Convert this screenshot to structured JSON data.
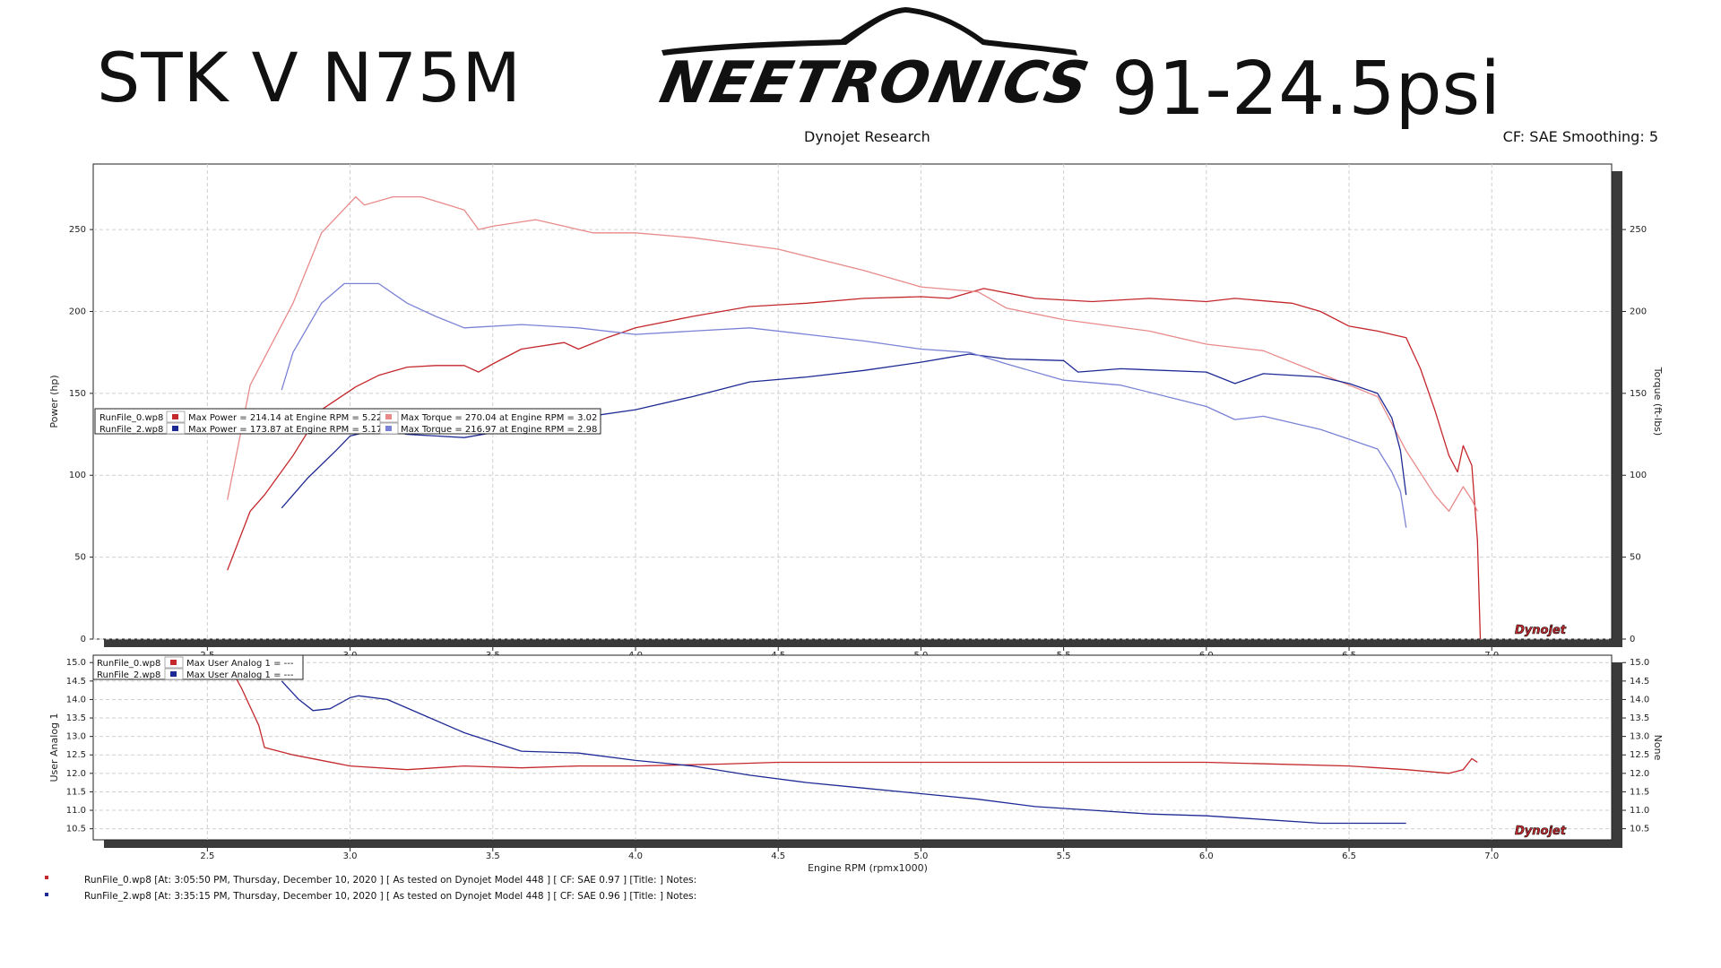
{
  "header": {
    "title_left": "STK V N75M",
    "logo": "NEETRONICS",
    "title_right": "91-24.5psi",
    "subtitle": "Dynojet Research",
    "cf_label": "CF: SAE Smoothing: 5",
    "dynojet_logo_text": "Dynojet"
  },
  "colors": {
    "run0_power": "#c4272c",
    "run0_torque": "#e98a8a",
    "run2_power": "#1e2a94",
    "run2_torque": "#7a82d6",
    "grid": "#cfcfcf"
  },
  "chart_data": [
    {
      "type": "line",
      "title": "",
      "xlabel": "Engine RPM (rpmx1000)",
      "ylabel": "Power (hp)",
      "ylabel_right": "Torque (ft-lbs)",
      "xlim": [
        2.1,
        7.42
      ],
      "ylim": [
        0,
        290
      ],
      "x_ticks": [
        "2.5",
        "3.0",
        "3.5",
        "4.0",
        "4.5",
        "5.0",
        "5.5",
        "6.0",
        "6.5",
        "7.0"
      ],
      "y_ticks": [
        "0",
        "50",
        "100",
        "150",
        "200",
        "250"
      ],
      "grid": true,
      "legend_position": "left-middle",
      "legend": [
        {
          "file": "RunFile_0.wp8",
          "power_text": "Max Power = 214.14 at Engine RPM = 5.22",
          "torque_text": "Max Torque = 270.04 at Engine RPM = 3.02"
        },
        {
          "file": "RunFile_2.wp8",
          "power_text": "Max Power = 173.87 at Engine RPM = 5.17",
          "torque_text": "Max Torque = 216.97 at Engine RPM = 2.98"
        }
      ],
      "series": [
        {
          "run": "RunFile_0",
          "kind": "power",
          "x": [
            2.57,
            2.65,
            2.7,
            2.8,
            2.9,
            3.02,
            3.1,
            3.2,
            3.3,
            3.4,
            3.45,
            3.5,
            3.6,
            3.75,
            3.8,
            3.9,
            4.0,
            4.2,
            4.4,
            4.6,
            4.8,
            5.0,
            5.1,
            5.22,
            5.4,
            5.6,
            5.8,
            6.0,
            6.1,
            6.3,
            6.4,
            6.5,
            6.6,
            6.65,
            6.7,
            6.75,
            6.8,
            6.85,
            6.88,
            6.9,
            6.93,
            6.95,
            6.96
          ],
          "y": [
            42,
            78,
            88,
            112,
            140,
            154,
            161,
            166,
            167,
            167,
            163,
            168,
            177,
            181,
            177,
            184,
            190,
            197,
            203,
            205,
            208,
            209,
            208,
            214,
            208,
            206,
            208,
            206,
            208,
            205,
            200,
            191,
            188,
            186,
            184,
            165,
            140,
            112,
            102,
            118,
            106,
            60,
            0
          ]
        },
        {
          "run": "RunFile_0",
          "kind": "torque",
          "x": [
            2.57,
            2.65,
            2.8,
            2.9,
            3.02,
            3.05,
            3.15,
            3.25,
            3.4,
            3.45,
            3.5,
            3.65,
            3.75,
            3.85,
            4.0,
            4.2,
            4.5,
            4.8,
            5.0,
            5.2,
            5.3,
            5.5,
            5.8,
            6.0,
            6.2,
            6.4,
            6.5,
            6.6,
            6.7,
            6.8,
            6.85,
            6.9,
            6.93,
            6.95
          ],
          "y": [
            85,
            155,
            205,
            248,
            270,
            265,
            270,
            270,
            262,
            250,
            252,
            256,
            252,
            248,
            248,
            245,
            238,
            225,
            215,
            212,
            202,
            195,
            188,
            180,
            176,
            162,
            155,
            148,
            115,
            88,
            78,
            93,
            85,
            78
          ]
        },
        {
          "run": "RunFile_2",
          "kind": "power",
          "x": [
            2.76,
            2.85,
            2.95,
            3.0,
            3.1,
            3.2,
            3.3,
            3.4,
            3.5,
            3.6,
            3.8,
            4.0,
            4.2,
            4.4,
            4.6,
            4.8,
            5.0,
            5.1,
            5.17,
            5.3,
            5.5,
            5.55,
            5.7,
            6.0,
            6.1,
            6.2,
            6.4,
            6.5,
            6.6,
            6.65,
            6.68,
            6.7
          ],
          "y": [
            80,
            98,
            115,
            124,
            128,
            125,
            124,
            123,
            126,
            130,
            135,
            140,
            148,
            157,
            160,
            164,
            169,
            172,
            174,
            171,
            170,
            163,
            165,
            163,
            156,
            162,
            160,
            156,
            150,
            135,
            115,
            88
          ]
        },
        {
          "run": "RunFile_2",
          "kind": "torque",
          "x": [
            2.76,
            2.8,
            2.9,
            2.98,
            3.1,
            3.2,
            3.3,
            3.4,
            3.6,
            3.8,
            4.0,
            4.2,
            4.4,
            4.6,
            4.8,
            5.0,
            5.17,
            5.3,
            5.5,
            5.7,
            6.0,
            6.1,
            6.2,
            6.4,
            6.5,
            6.6,
            6.65,
            6.68,
            6.7
          ],
          "y": [
            152,
            175,
            205,
            217,
            217,
            205,
            197,
            190,
            192,
            190,
            186,
            188,
            190,
            186,
            182,
            177,
            175,
            168,
            158,
            155,
            142,
            134,
            136,
            128,
            122,
            116,
            102,
            90,
            68
          ]
        }
      ]
    },
    {
      "type": "line",
      "title": "",
      "xlabel": "Engine RPM (rpmx1000)",
      "ylabel": "User Analog 1",
      "ylabel_right": "None",
      "xlim": [
        2.1,
        7.42
      ],
      "ylim": [
        10.2,
        15.2
      ],
      "x_ticks": [
        "2.5",
        "3.0",
        "3.5",
        "4.0",
        "4.5",
        "5.0",
        "5.5",
        "6.0",
        "6.5",
        "7.0"
      ],
      "y_ticks": [
        "10.5",
        "11.0",
        "11.5",
        "12.0",
        "12.5",
        "13.0",
        "13.5",
        "14.0",
        "14.5",
        "15.0"
      ],
      "grid": true,
      "legend_position": "top-left",
      "legend": [
        {
          "file": "RunFile_0.wp8",
          "text": "Max User Analog 1 = ---"
        },
        {
          "file": "RunFile_2.wp8",
          "text": "Max User Analog 1 = ---"
        }
      ],
      "series": [
        {
          "run": "RunFile_0",
          "kind": "analog",
          "x": [
            2.57,
            2.62,
            2.68,
            2.7,
            2.8,
            3.0,
            3.2,
            3.4,
            3.6,
            3.8,
            4.0,
            4.3,
            4.5,
            5.0,
            5.5,
            6.0,
            6.5,
            6.7,
            6.85,
            6.9,
            6.93,
            6.95
          ],
          "y": [
            15.0,
            14.3,
            13.3,
            12.7,
            12.5,
            12.2,
            12.1,
            12.2,
            12.15,
            12.2,
            12.2,
            12.25,
            12.3,
            12.3,
            12.3,
            12.3,
            12.2,
            12.1,
            12.0,
            12.1,
            12.4,
            12.3
          ]
        },
        {
          "run": "RunFile_2",
          "kind": "analog",
          "x": [
            2.76,
            2.82,
            2.87,
            2.93,
            3.0,
            3.03,
            3.13,
            3.25,
            3.4,
            3.6,
            3.8,
            4.0,
            4.2,
            4.4,
            4.6,
            4.8,
            5.0,
            5.2,
            5.4,
            5.6,
            5.8,
            6.0,
            6.2,
            6.4,
            6.7
          ],
          "y": [
            14.5,
            14.0,
            13.7,
            13.75,
            14.05,
            14.1,
            14.0,
            13.6,
            13.1,
            12.6,
            12.55,
            12.35,
            12.2,
            11.95,
            11.75,
            11.6,
            11.45,
            11.3,
            11.1,
            11.0,
            10.9,
            10.85,
            10.75,
            10.65,
            10.65
          ]
        }
      ]
    }
  ],
  "footer": [
    "RunFile_0.wp8 [At: 3:05:50 PM, Thursday, December 10, 2020 ] [ As tested on Dynojet Model 448 ] [ CF: SAE 0.97 ] [Title: ]  Notes:",
    "RunFile_2.wp8 [At: 3:35:15 PM, Thursday, December 10, 2020 ] [ As tested on Dynojet Model 448 ] [ CF: SAE 0.96 ] [Title: ]  Notes:"
  ]
}
